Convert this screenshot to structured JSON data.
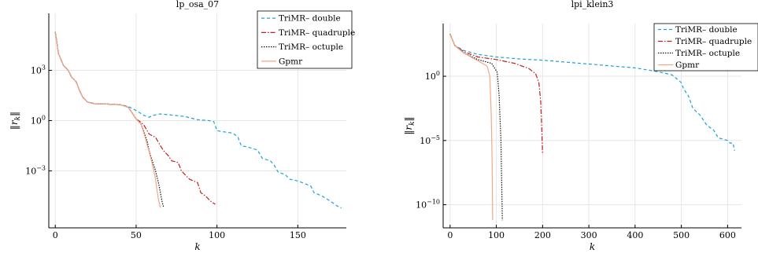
{
  "chart_data": [
    {
      "type": "line",
      "title": "lp_osa_07",
      "xlabel": "k",
      "ylabel": "‖r_k‖",
      "yscale": "log",
      "xlim": [
        -4,
        180
      ],
      "ylim_log10": [
        -6.4,
        6.4
      ],
      "xticks": [
        0,
        50,
        100,
        150
      ],
      "yticks": [
        {
          "exp": 3,
          "label": "10^3"
        },
        {
          "exp": 0,
          "label": "10^0"
        },
        {
          "exp": -3,
          "label": "10^-3"
        }
      ],
      "grid": true,
      "legend_position": "top-right",
      "series": [
        {
          "name": "TriMR– double",
          "color": "#1ba1d8",
          "dash": "4,3",
          "points": [
            [
              0,
              5.3
            ],
            [
              2,
              4.0
            ],
            [
              5,
              3.3
            ],
            [
              8,
              3.0
            ],
            [
              10,
              2.6
            ],
            [
              13,
              2.3
            ],
            [
              15,
              1.8
            ],
            [
              17,
              1.4
            ],
            [
              20,
              1.1
            ],
            [
              25,
              1.0
            ],
            [
              30,
              1.0
            ],
            [
              40,
              0.95
            ],
            [
              45,
              0.85
            ],
            [
              50,
              0.6
            ],
            [
              55,
              0.3
            ],
            [
              58,
              0.2
            ],
            [
              60,
              0.3
            ],
            [
              65,
              0.4
            ],
            [
              70,
              0.35
            ],
            [
              75,
              0.3
            ],
            [
              80,
              0.25
            ],
            [
              88,
              0.05
            ],
            [
              95,
              0.0
            ],
            [
              98,
              -0.05
            ],
            [
              100,
              -0.6
            ],
            [
              103,
              -0.65
            ],
            [
              110,
              -0.75
            ],
            [
              113,
              -1.0
            ],
            [
              115,
              -1.5
            ],
            [
              118,
              -1.55
            ],
            [
              125,
              -1.75
            ],
            [
              128,
              -2.25
            ],
            [
              133,
              -2.4
            ],
            [
              135,
              -2.6
            ],
            [
              138,
              -3.1
            ],
            [
              142,
              -3.2
            ],
            [
              145,
              -3.5
            ],
            [
              150,
              -3.6
            ],
            [
              158,
              -3.9
            ],
            [
              160,
              -4.3
            ],
            [
              165,
              -4.5
            ],
            [
              170,
              -4.8
            ],
            [
              173,
              -5.0
            ],
            [
              176,
              -5.2
            ],
            [
              177,
              -5.2
            ]
          ]
        },
        {
          "name": "TriMR– quadruple",
          "color": "#c11f1d",
          "dash": "6,2,1.5,2",
          "points": [
            [
              0,
              5.3
            ],
            [
              2,
              4.0
            ],
            [
              5,
              3.3
            ],
            [
              8,
              3.0
            ],
            [
              10,
              2.6
            ],
            [
              13,
              2.3
            ],
            [
              15,
              1.8
            ],
            [
              17,
              1.4
            ],
            [
              20,
              1.1
            ],
            [
              25,
              1.0
            ],
            [
              30,
              1.0
            ],
            [
              40,
              0.95
            ],
            [
              45,
              0.8
            ],
            [
              48,
              0.4
            ],
            [
              50,
              0.1
            ],
            [
              53,
              -0.1
            ],
            [
              55,
              -0.3
            ],
            [
              58,
              -0.8
            ],
            [
              62,
              -1.0
            ],
            [
              65,
              -1.5
            ],
            [
              67,
              -1.8
            ],
            [
              70,
              -2.1
            ],
            [
              72,
              -2.4
            ],
            [
              76,
              -2.5
            ],
            [
              78,
              -3.0
            ],
            [
              83,
              -3.5
            ],
            [
              88,
              -3.7
            ],
            [
              90,
              -4.3
            ],
            [
              93,
              -4.5
            ],
            [
              96,
              -4.8
            ],
            [
              99,
              -5.0
            ]
          ]
        },
        {
          "name": "TriMR– octuple",
          "color": "#111111",
          "dash": "1.5,1.5",
          "points": [
            [
              0,
              5.3
            ],
            [
              2,
              4.0
            ],
            [
              5,
              3.3
            ],
            [
              8,
              3.0
            ],
            [
              10,
              2.6
            ],
            [
              13,
              2.3
            ],
            [
              15,
              1.8
            ],
            [
              17,
              1.4
            ],
            [
              20,
              1.1
            ],
            [
              25,
              1.0
            ],
            [
              30,
              1.0
            ],
            [
              40,
              0.95
            ],
            [
              45,
              0.8
            ],
            [
              48,
              0.4
            ],
            [
              50,
              0.1
            ],
            [
              53,
              -0.2
            ],
            [
              55,
              -0.7
            ],
            [
              57,
              -1.3
            ],
            [
              58,
              -1.8
            ],
            [
              60,
              -2.4
            ],
            [
              62,
              -3.0
            ],
            [
              64,
              -3.8
            ],
            [
              65,
              -4.3
            ],
            [
              66,
              -4.8
            ],
            [
              67,
              -5.2
            ]
          ]
        },
        {
          "name": "Gpmr",
          "color": "#f4a688",
          "dash": "",
          "points": [
            [
              0,
              5.3
            ],
            [
              2,
              4.0
            ],
            [
              5,
              3.3
            ],
            [
              8,
              3.0
            ],
            [
              10,
              2.6
            ],
            [
              13,
              2.3
            ],
            [
              15,
              1.8
            ],
            [
              17,
              1.4
            ],
            [
              20,
              1.1
            ],
            [
              25,
              1.0
            ],
            [
              30,
              1.0
            ],
            [
              40,
              0.95
            ],
            [
              45,
              0.8
            ],
            [
              48,
              0.4
            ],
            [
              50,
              0.1
            ],
            [
              53,
              -0.2
            ],
            [
              55,
              -0.8
            ],
            [
              57,
              -1.5
            ],
            [
              59,
              -2.2
            ],
            [
              61,
              -3.0
            ],
            [
              62,
              -3.5
            ],
            [
              63,
              -4.2
            ],
            [
              64,
              -4.8
            ],
            [
              65,
              -5.2
            ]
          ]
        }
      ]
    },
    {
      "type": "line",
      "title": "lpi_klein3",
      "xlabel": "k",
      "ylabel": "‖r_k‖",
      "yscale": "log",
      "xlim": [
        -15,
        630
      ],
      "ylim_log10": [
        -11.8,
        4.1
      ],
      "xticks": [
        0,
        100,
        200,
        300,
        400,
        500,
        600
      ],
      "yticks": [
        {
          "exp": 0,
          "label": "10^0"
        },
        {
          "exp": -5,
          "label": "10^-5"
        },
        {
          "exp": -10,
          "label": "10^-10"
        }
      ],
      "grid": true,
      "legend_position": "top-right",
      "series": [
        {
          "name": "TriMR– double",
          "color": "#1ba1d8",
          "dash": "4,3",
          "points": [
            [
              0,
              3.3
            ],
            [
              10,
              2.4
            ],
            [
              30,
              2.0
            ],
            [
              60,
              1.7
            ],
            [
              100,
              1.5
            ],
            [
              150,
              1.35
            ],
            [
              200,
              1.25
            ],
            [
              250,
              1.1
            ],
            [
              300,
              0.95
            ],
            [
              350,
              0.8
            ],
            [
              400,
              0.65
            ],
            [
              450,
              0.35
            ],
            [
              480,
              0.1
            ],
            [
              500,
              -0.5
            ],
            [
              505,
              -1.0
            ],
            [
              515,
              -1.5
            ],
            [
              525,
              -2.5
            ],
            [
              540,
              -3.0
            ],
            [
              555,
              -3.8
            ],
            [
              570,
              -4.2
            ],
            [
              580,
              -4.8
            ],
            [
              600,
              -5.0
            ],
            [
              605,
              -5.2
            ],
            [
              612,
              -5.2
            ],
            [
              615,
              -5.8
            ]
          ]
        },
        {
          "name": "TriMR– quadruple",
          "color": "#c11f1d",
          "dash": "6,2,1.5,2",
          "points": [
            [
              0,
              3.3
            ],
            [
              10,
              2.4
            ],
            [
              30,
              1.9
            ],
            [
              60,
              1.5
            ],
            [
              100,
              1.3
            ],
            [
              140,
              1.0
            ],
            [
              170,
              0.6
            ],
            [
              185,
              0.2
            ],
            [
              192,
              -0.5
            ],
            [
              196,
              -2.0
            ],
            [
              198,
              -4.0
            ],
            [
              200,
              -6.0
            ]
          ]
        },
        {
          "name": "TriMR– octuple",
          "color": "#111111",
          "dash": "1.5,1.5",
          "points": [
            [
              0,
              3.3
            ],
            [
              10,
              2.4
            ],
            [
              30,
              1.8
            ],
            [
              60,
              1.3
            ],
            [
              90,
              1.0
            ],
            [
              102,
              0.3
            ],
            [
              106,
              -1.5
            ],
            [
              110,
              -5.0
            ],
            [
              112,
              -9.0
            ],
            [
              113,
              -11.2
            ]
          ]
        },
        {
          "name": "Gpmr",
          "color": "#f4a688",
          "dash": "",
          "points": [
            [
              0,
              3.3
            ],
            [
              10,
              2.4
            ],
            [
              30,
              1.8
            ],
            [
              60,
              1.2
            ],
            [
              80,
              0.8
            ],
            [
              86,
              0.0
            ],
            [
              89,
              -3.0
            ],
            [
              91,
              -7.0
            ],
            [
              92,
              -11.2
            ]
          ]
        }
      ]
    }
  ]
}
